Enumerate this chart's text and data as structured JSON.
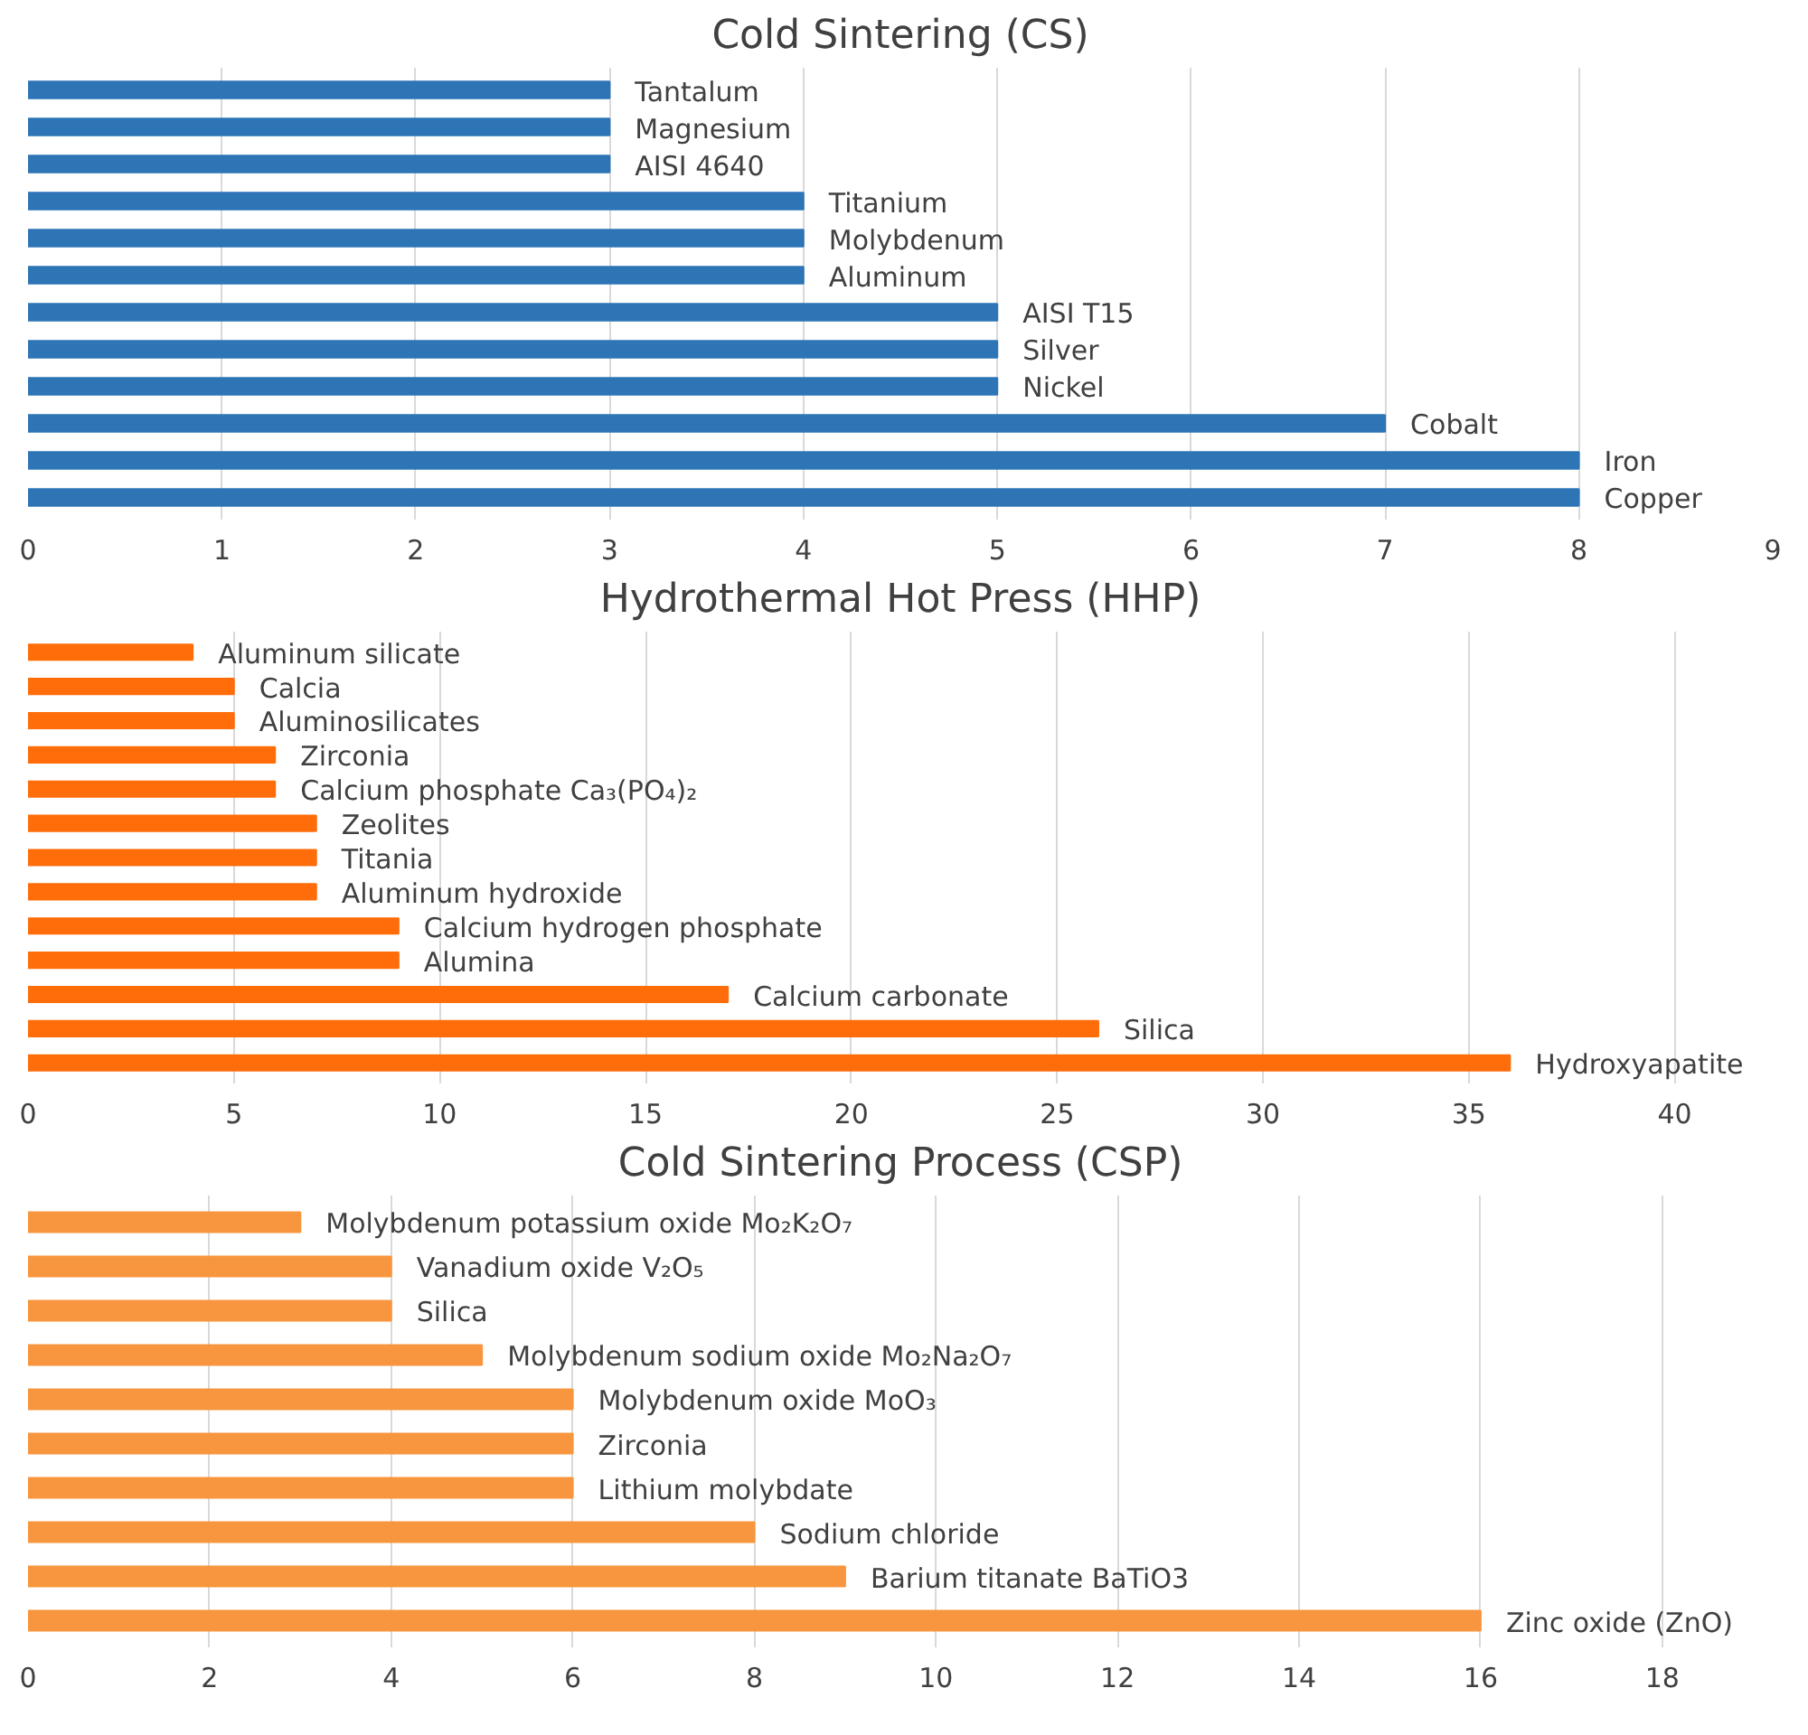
{
  "chart_data": [
    {
      "type": "bar",
      "orientation": "horizontal",
      "title": "Cold Sintering (CS)",
      "categories": [
        "Tantalum",
        "Magnesium",
        "AISI 4640",
        "Titanium",
        "Molybdenum",
        "Aluminum",
        "AISI T15",
        "Silver",
        "Nickel",
        "Cobalt",
        "Iron",
        "Copper"
      ],
      "values": [
        3,
        3,
        3,
        4,
        4,
        4,
        5,
        5,
        5,
        7,
        8,
        8
      ],
      "color": "#2e75b6",
      "xlim": [
        0,
        9
      ],
      "xticks": [
        0,
        1,
        2,
        3,
        4,
        5,
        6,
        7,
        8,
        9
      ],
      "grid": "x"
    },
    {
      "type": "bar",
      "orientation": "horizontal",
      "title": "Hydrothermal Hot Press (HHP)",
      "categories": [
        "Aluminum silicate",
        "Calcia",
        "Aluminosilicates",
        "Zirconia",
        "Calcium phosphate Ca₃(PO₄)₂",
        "Zeolites",
        "Titania",
        "Aluminum hydroxide",
        "Calcium hydrogen phosphate",
        "Alumina",
        "Calcium carbonate",
        "Silica",
        "Hydroxyapatite"
      ],
      "values": [
        4,
        5,
        5,
        6,
        6,
        7,
        7,
        7,
        9,
        9,
        17,
        26,
        36
      ],
      "color": "#ff6d0a",
      "xlim": [
        0,
        40
      ],
      "xticks": [
        0,
        5,
        10,
        15,
        20,
        25,
        30,
        35,
        40
      ],
      "grid": "x"
    },
    {
      "type": "bar",
      "orientation": "horizontal",
      "title": "Cold Sintering Process (CSP)",
      "categories": [
        "Molybdenum potassium oxide Mo₂K₂O₇",
        "Vanadium oxide V₂O₅",
        "Silica",
        "Molybdenum sodium oxide Mo₂Na₂O₇",
        "Molybdenum oxide MoO₃",
        "Zirconia",
        "Lithium molybdate",
        "Sodium chloride",
        "Barium titanate BaTiO3",
        "Zinc oxide (ZnO)"
      ],
      "values": [
        3,
        4,
        4,
        5,
        6,
        6,
        6,
        8,
        9,
        16
      ],
      "color": "#f8963f",
      "xlim": [
        0,
        18
      ],
      "xticks": [
        0,
        2,
        4,
        6,
        8,
        10,
        12,
        14,
        16,
        18
      ],
      "grid": "x"
    }
  ]
}
